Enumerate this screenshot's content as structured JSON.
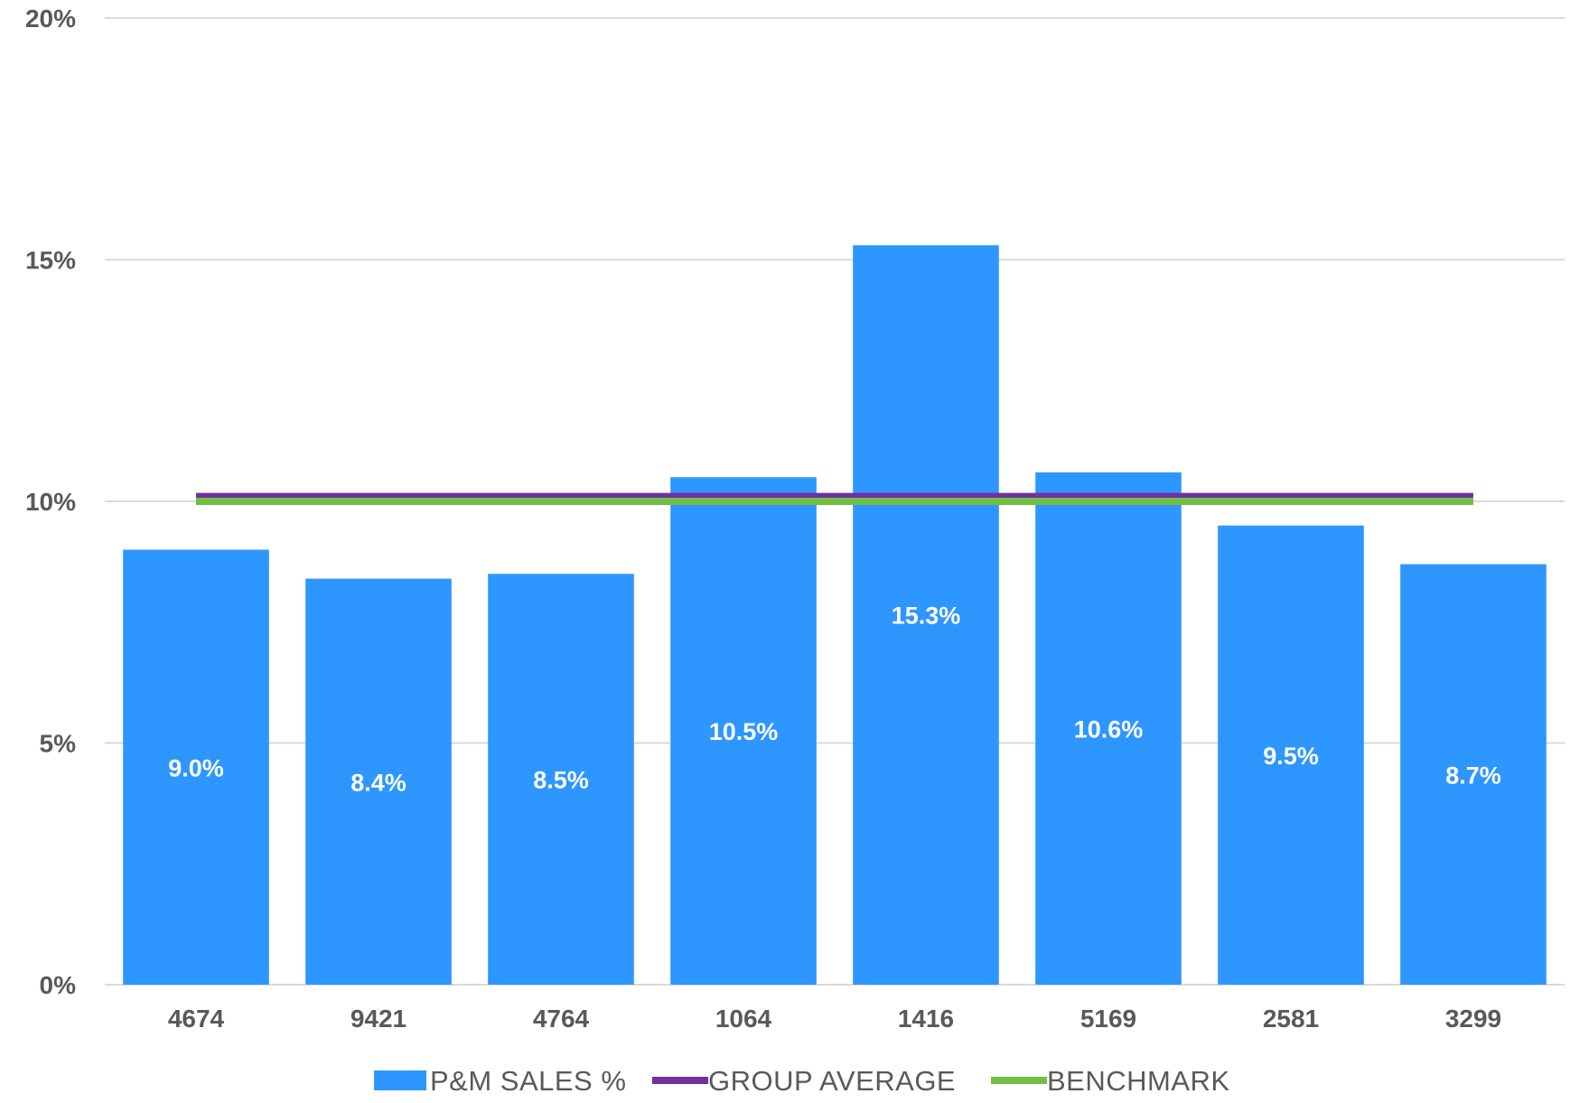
{
  "chart_data": {
    "type": "bar",
    "title": "",
    "xlabel": "",
    "ylabel": "",
    "categories": [
      "4674",
      "9421",
      "4764",
      "1064",
      "1416",
      "5169",
      "2581",
      "3299"
    ],
    "series": [
      {
        "name": "P&M SALES %",
        "type": "bar",
        "values": [
          9.0,
          8.4,
          8.5,
          10.5,
          15.3,
          10.6,
          9.5,
          8.7
        ],
        "labels": [
          "9.0%",
          "8.4%",
          "8.5%",
          "10.5%",
          "15.3%",
          "10.6%",
          "9.5%",
          "8.7%"
        ],
        "color": "#2E96FF"
      },
      {
        "name": "GROUP AVERAGE",
        "type": "line",
        "values": [
          10.1,
          10.1,
          10.1,
          10.1,
          10.1,
          10.1,
          10.1,
          10.1
        ],
        "color": "#7030A0"
      },
      {
        "name": "BENCHMARK",
        "type": "line",
        "values": [
          10.0,
          10.0,
          10.0,
          10.0,
          10.0,
          10.0,
          10.0,
          10.0
        ],
        "color": "#70BF44"
      }
    ],
    "ylim": [
      0,
      20
    ],
    "yticks": [
      0,
      5,
      10,
      15,
      20
    ],
    "ytick_labels": [
      "0%",
      "5%",
      "10%",
      "15%",
      "20%"
    ],
    "grid": true,
    "legend_position": "bottom",
    "gridline_color": "#D9D9D9",
    "axis_text_color": "#595959"
  }
}
